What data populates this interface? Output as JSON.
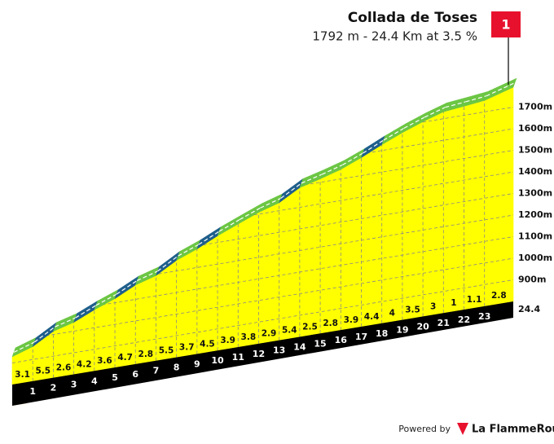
{
  "chart_data": {
    "type": "climb-profile",
    "title": "Collada de Toses",
    "subtitle": "1792 m - 24.4 Km at 3.5 %",
    "summit_marker": "1",
    "summit_elevation": 1792,
    "xlim": [
      0,
      24.4
    ],
    "km_markers": [
      1,
      2,
      3,
      4,
      5,
      6,
      7,
      8,
      9,
      10,
      11,
      12,
      13,
      14,
      15,
      16,
      17,
      18,
      19,
      20,
      21,
      22,
      23,
      24.4
    ],
    "gradients": [
      3.1,
      5.5,
      2.6,
      4.2,
      3.6,
      4.7,
      2.8,
      5.5,
      3.7,
      4.5,
      3.9,
      3.8,
      2.9,
      5.4,
      2.5,
      2.8,
      3.9,
      4.4,
      4.0,
      3.5,
      3.0,
      1.0,
      1.1,
      2.8
    ],
    "segment_colors": [
      "#6cc644",
      "#1f5f8b",
      "#6cc644",
      "#1f5f8b",
      "#6cc644",
      "#1f5f8b",
      "#6cc644",
      "#1f5f8b",
      "#6cc644",
      "#1f5f8b",
      "#6cc644",
      "#6cc644",
      "#6cc644",
      "#1f5f8b",
      "#6cc644",
      "#6cc644",
      "#6cc644",
      "#1f5f8b",
      "#6cc644",
      "#6cc644",
      "#6cc644",
      "#6cc644",
      "#6cc644",
      "#6cc644"
    ],
    "fill_color": "#ffff00",
    "ylim": [
      800,
      1800
    ],
    "yticks": [
      {
        "value": 900,
        "label": "900m"
      },
      {
        "value": 1000,
        "label": "1000m"
      },
      {
        "value": 1100,
        "label": "1100m"
      },
      {
        "value": 1200,
        "label": "1200m"
      },
      {
        "value": 1300,
        "label": "1300m"
      },
      {
        "value": 1400,
        "label": "1400m"
      },
      {
        "value": 1500,
        "label": "1500m"
      },
      {
        "value": 1600,
        "label": "1600m"
      },
      {
        "value": 1700,
        "label": "1700m"
      }
    ],
    "grid": true
  },
  "footer": {
    "powered_by": "Powered by",
    "brand": "La FlammeRouge"
  }
}
